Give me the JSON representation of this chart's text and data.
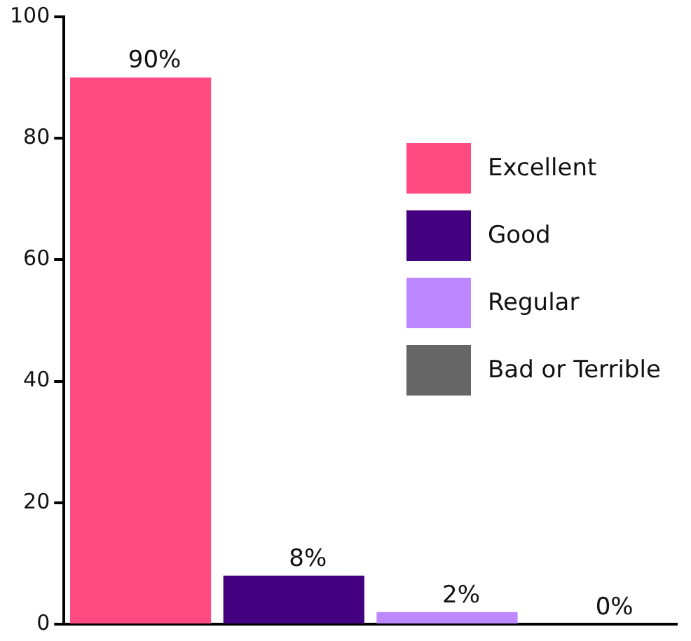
{
  "chart_data": {
    "type": "bar",
    "categories": [
      null,
      null,
      null,
      null
    ],
    "series": [
      {
        "name": "Excellent",
        "color": "#ff4b82",
        "values": [
          90,
          null,
          null,
          null
        ],
        "value_labels": [
          "90%",
          null,
          null,
          null
        ]
      },
      {
        "name": "Good",
        "color": "#43007f",
        "values": [
          null,
          8,
          null,
          null
        ],
        "value_labels": [
          null,
          "8%",
          null,
          null
        ]
      },
      {
        "name": "Regular",
        "color": "#bd87ff",
        "values": [
          null,
          null,
          2,
          null
        ],
        "value_labels": [
          null,
          null,
          "2%",
          null
        ]
      },
      {
        "name": "Bad or Terrible",
        "color": "#666666",
        "values": [
          null,
          null,
          null,
          0
        ],
        "value_labels": [
          null,
          null,
          null,
          "0%"
        ]
      }
    ],
    "ylim": [
      0,
      100
    ],
    "yticks": [
      0,
      20,
      40,
      60,
      80,
      100
    ],
    "grid": false,
    "legend": "top right",
    "tick_labels": "y"
  }
}
